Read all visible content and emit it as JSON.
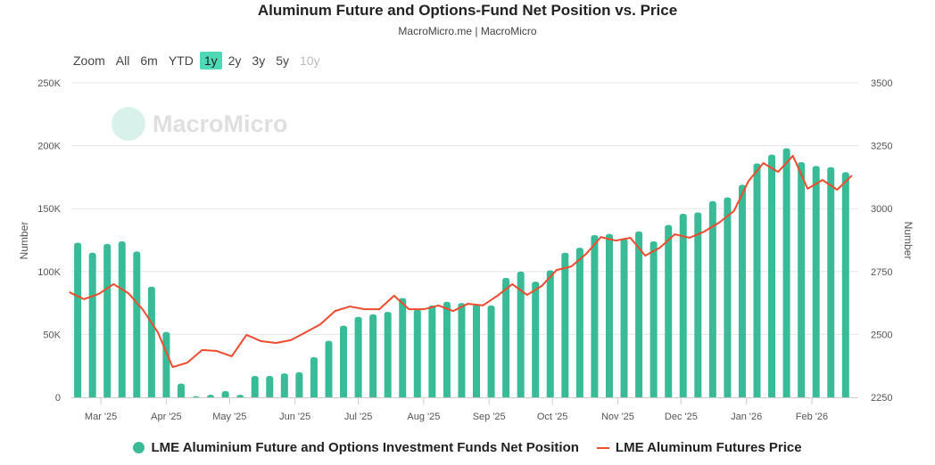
{
  "header": {
    "title": "Aluminum Future and Options-Fund Net Position vs. Price",
    "subtitle": "MacroMicro.me | MacroMicro"
  },
  "watermark": "MacroMicro",
  "range_selector": {
    "label": "Zoom",
    "options": [
      "All",
      "6m",
      "YTD",
      "1y",
      "2y",
      "3y",
      "5y",
      "10y"
    ],
    "selected": "1y",
    "disabled": [
      "10y"
    ]
  },
  "colors": {
    "bars": "#38bb96",
    "line": "#f04b2f",
    "selected": "#4fd8b6"
  },
  "chart_data": {
    "type": "bar+line",
    "title": "Aluminum Future and Options-Fund Net Position vs. Price",
    "xlim": [
      "2025-02-15",
      "2026-02-23"
    ],
    "x_ticks": [
      [
        "2025-03-01",
        "Mar '25"
      ],
      [
        "2025-04-01",
        "Apr '25"
      ],
      [
        "2025-05-01",
        "May '25"
      ],
      [
        "2025-06-01",
        "Jun '25"
      ],
      [
        "2025-07-01",
        "Jul '25"
      ],
      [
        "2025-08-01",
        "Aug '25"
      ],
      [
        "2025-09-01",
        "Sep '25"
      ],
      [
        "2025-10-01",
        "Oct '25"
      ],
      [
        "2025-11-01",
        "Nov '25"
      ],
      [
        "2025-12-01",
        "Dec '25"
      ],
      [
        "2026-01-01",
        "Jan '26"
      ],
      [
        "2026-02-01",
        "Feb '26"
      ]
    ],
    "y_left": {
      "label": "Number",
      "lim": [
        0,
        250000
      ],
      "ticks": [
        [
          0,
          "0"
        ],
        [
          50000,
          "50K"
        ],
        [
          100000,
          "100K"
        ],
        [
          150000,
          "150K"
        ],
        [
          200000,
          "200K"
        ],
        [
          250000,
          "250K"
        ]
      ]
    },
    "y_right": {
      "label": "Number",
      "lim": [
        2250,
        3500
      ],
      "ticks": [
        [
          2250,
          "2250"
        ],
        [
          2500,
          "2500"
        ],
        [
          2750,
          "2750"
        ],
        [
          3000,
          "3000"
        ],
        [
          3250,
          "3250"
        ],
        [
          3500,
          "3500"
        ]
      ]
    },
    "grid": true,
    "legend_position": "bottom",
    "series": [
      {
        "name": "LME Aluminium Future and Options Investment Funds Net Position",
        "type": "bar",
        "axis": "left",
        "start": "2025-02-18",
        "step_days": 7,
        "values": [
          123000,
          115000,
          122000,
          124000,
          116000,
          88000,
          52000,
          11000,
          1000,
          2000,
          5000,
          2000,
          17000,
          17000,
          19000,
          20000,
          32000,
          45000,
          57000,
          64000,
          66000,
          68000,
          79000,
          70000,
          73000,
          76000,
          75000,
          74000,
          73000,
          95000,
          100000,
          92000,
          101000,
          115000,
          119000,
          129000,
          130000,
          126000,
          132000,
          124000,
          137000,
          146000,
          147000,
          156000,
          159000,
          169000,
          186000,
          193000,
          198000,
          187000,
          184000,
          183000,
          179000
        ]
      },
      {
        "name": "LME Aluminum Futures Price",
        "type": "line",
        "axis": "right",
        "start": "2025-02-14",
        "step_days": 7,
        "values": [
          2668,
          2640,
          2661,
          2700,
          2664,
          2597,
          2508,
          2370,
          2388,
          2438,
          2434,
          2413,
          2498,
          2473,
          2466,
          2477,
          2508,
          2540,
          2593,
          2611,
          2600,
          2600,
          2654,
          2600,
          2600,
          2615,
          2593,
          2622,
          2615,
          2654,
          2700,
          2657,
          2693,
          2756,
          2770,
          2820,
          2887,
          2873,
          2884,
          2813,
          2845,
          2898,
          2884,
          2909,
          2944,
          2990,
          3110,
          3181,
          3146,
          3210,
          3079,
          3114,
          3075,
          3132
        ]
      }
    ]
  }
}
